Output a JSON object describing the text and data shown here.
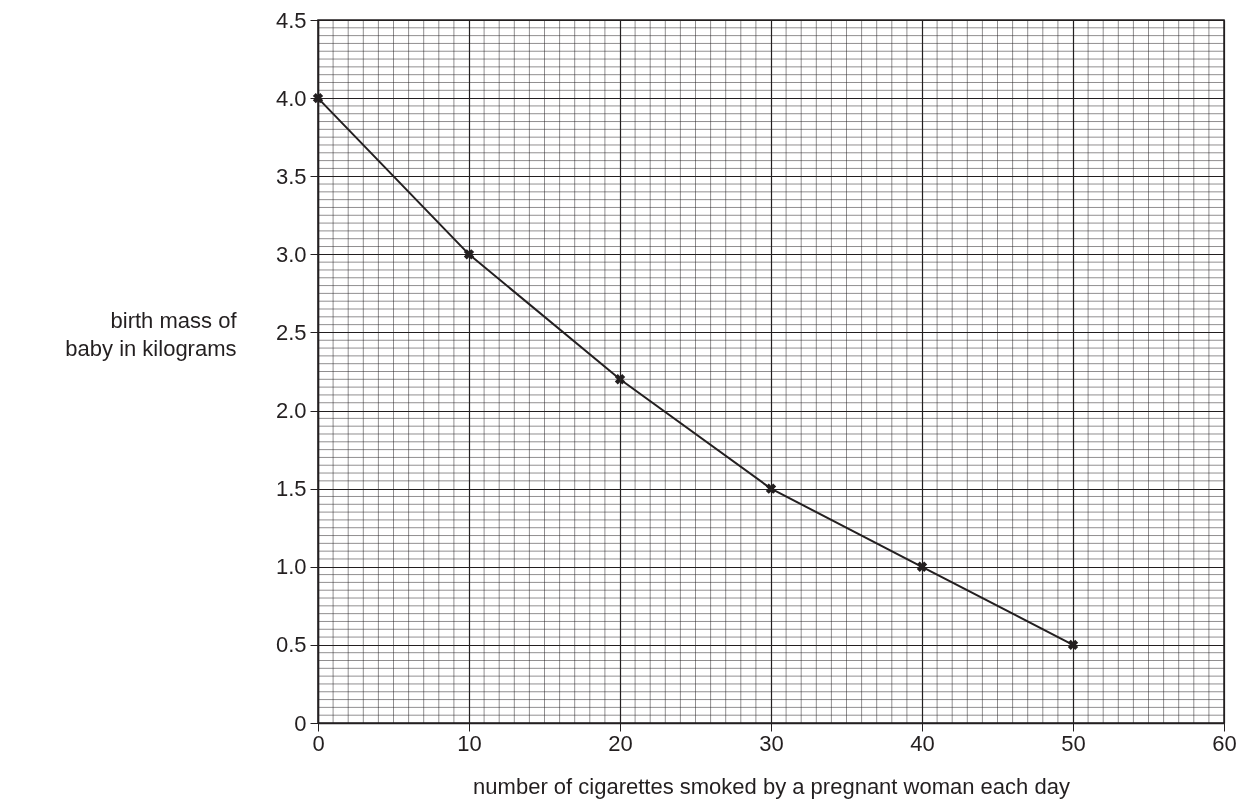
{
  "chart_data": {
    "type": "line",
    "xlabel": "number of cigarettes smoked by a pregnant woman each day",
    "ylabel": "birth mass of baby in kilograms",
    "x": [
      0,
      10,
      20,
      30,
      40,
      50
    ],
    "series": [
      {
        "color": "#231f20",
        "values": [
          4.0,
          3.0,
          2.2,
          1.5,
          1.0,
          0.5
        ]
      }
    ],
    "xlim": [
      0,
      60
    ],
    "xticks": [
      0,
      10,
      20,
      30,
      40,
      50,
      60
    ],
    "ylim": [
      0,
      4.5
    ],
    "yticks": [
      0,
      0.5,
      {
        "value": 1,
        "label": "1.0"
      },
      1.5,
      {
        "value": 2,
        "label": "2.0"
      },
      2.5,
      {
        "value": 3,
        "label": "3.0"
      },
      3.5,
      {
        "value": 4,
        "label": "4.0"
      },
      4.5
    ],
    "grid": true,
    "marker": "cross",
    "line_style": "solid"
  }
}
